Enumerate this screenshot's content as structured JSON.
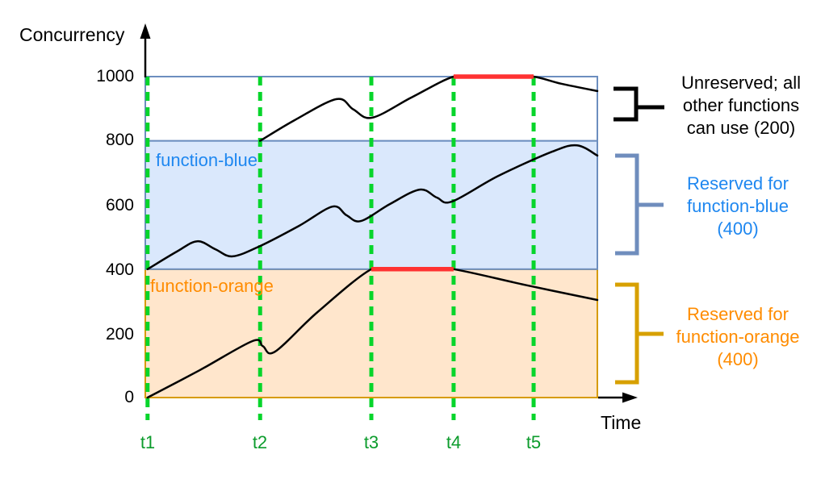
{
  "chart_data": {
    "type": "line",
    "y_axis": {
      "label": "Concurrency",
      "range": [
        0,
        1000
      ],
      "ticks": [
        0,
        200,
        400,
        600,
        800,
        1000
      ]
    },
    "x_axis": {
      "label": "Time",
      "range": [
        0,
        100
      ],
      "ticks": [
        {
          "label": "t1",
          "x": 0.5
        },
        {
          "label": "t2",
          "x": 25.4
        },
        {
          "label": "t3",
          "x": 50
        },
        {
          "label": "t4",
          "x": 68.2
        },
        {
          "label": "t5",
          "x": 85.9
        }
      ],
      "gridline_style": "dashed",
      "gridline_color": "#07d52b"
    },
    "bands": [
      {
        "name": "unreserved",
        "label": "",
        "from": 800,
        "to": 1000,
        "fill": "#ffffff",
        "stroke": "#6c8ebf",
        "note": "Unreserved; all other functions can use (200)"
      },
      {
        "name": "function-blue",
        "label": "function-blue",
        "label_color": "#1e87f0",
        "from": 400,
        "to": 800,
        "fill": "#dae8fc",
        "stroke": "#6c8ebf",
        "note": "Reserved for function-blue (400)"
      },
      {
        "name": "function-orange",
        "label": "function-orange",
        "label_color": "#ff8c00",
        "from": 0,
        "to": 400,
        "fill": "#ffe6cc",
        "stroke": "#d79b00",
        "note": "Reserved for function-orange (400)"
      }
    ],
    "series": [
      {
        "name": "function-orange-usage",
        "color": "#000000",
        "band": [
          0,
          400
        ],
        "points": [
          [
            0.5,
            0
          ],
          [
            12,
            85
          ],
          [
            23.7,
            176
          ],
          [
            26,
            160
          ],
          [
            28.7,
            143
          ],
          [
            38,
            265
          ],
          [
            50,
            400
          ],
          [
            56,
            400
          ],
          [
            62,
            400
          ],
          [
            68.2,
            400
          ],
          [
            84,
            351
          ],
          [
            100,
            304
          ]
        ]
      },
      {
        "name": "function-blue-usage",
        "color": "#000000",
        "band": [
          400,
          800
        ],
        "points": [
          [
            0.5,
            400
          ],
          [
            7,
            455
          ],
          [
            11.5,
            487
          ],
          [
            15.5,
            462
          ],
          [
            19.3,
            440
          ],
          [
            25.4,
            472
          ],
          [
            34,
            535
          ],
          [
            41.4,
            595
          ],
          [
            44.5,
            568
          ],
          [
            47.7,
            550
          ],
          [
            54,
            602
          ],
          [
            60.7,
            648
          ],
          [
            64.5,
            623
          ],
          [
            67.9,
            611
          ],
          [
            78,
            690
          ],
          [
            90,
            766
          ],
          [
            95.5,
            786
          ],
          [
            100,
            754
          ]
        ]
      },
      {
        "name": "other-functions-usage",
        "color": "#000000",
        "band": [
          800,
          1000
        ],
        "points": [
          [
            25.4,
            800
          ],
          [
            33,
            864
          ],
          [
            42.3,
            930
          ],
          [
            46,
            898
          ],
          [
            50.2,
            872
          ],
          [
            59,
            936
          ],
          [
            68.2,
            1000
          ],
          [
            74,
            1000
          ],
          [
            80,
            1000
          ],
          [
            85.9,
            1000
          ],
          [
            92,
            978
          ],
          [
            100,
            955
          ]
        ]
      }
    ],
    "throttle_segments": [
      {
        "name": "throttled-at-400",
        "at": 400,
        "x_from": 50,
        "x_to": 68.2,
        "color": "#ff3232"
      },
      {
        "name": "throttled-at-1000",
        "at": 1000,
        "x_from": 68.2,
        "x_to": 85.9,
        "color": "#ff3232"
      }
    ]
  },
  "annotations": {
    "unreserved": {
      "lines": [
        "Unreserved; all",
        "other functions",
        "can use (200)"
      ],
      "text_color": "#000000",
      "bracket_color": "#000000"
    },
    "blue": {
      "lines": [
        "Reserved for",
        "function-blue",
        "(400)"
      ],
      "text_color": "#1e87f0",
      "bracket_color": "#6f8dbd"
    },
    "orange": {
      "lines": [
        "Reserved for",
        "function-orange",
        "(400)"
      ],
      "text_color": "#ff8c00",
      "bracket_color": "#d7a000"
    }
  },
  "tick_label_color": "#0c9c2c"
}
